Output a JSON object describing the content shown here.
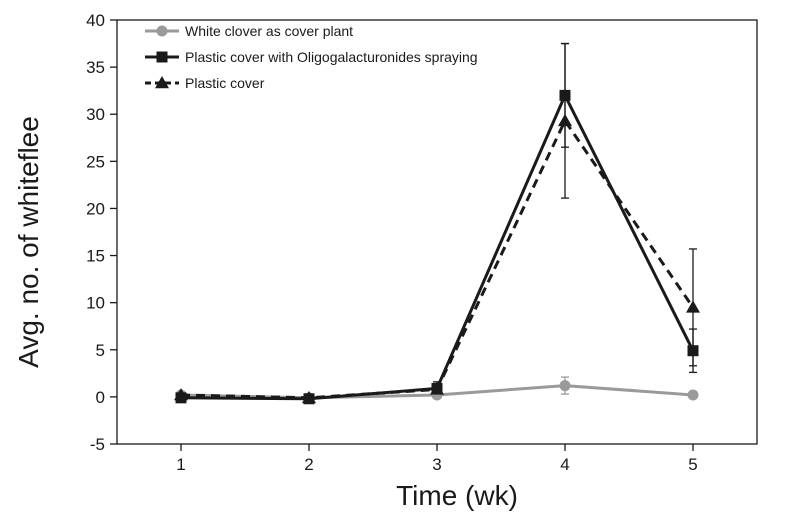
{
  "chart_data": {
    "type": "line",
    "xlabel": "Time (wk)",
    "ylabel": "Avg. no. of whiteflee",
    "x": [
      1,
      2,
      3,
      4,
      5
    ],
    "xlim": [
      0.5,
      5.5
    ],
    "ylim": [
      -5,
      40
    ],
    "yticks": [
      -5,
      0,
      5,
      10,
      15,
      20,
      25,
      30,
      35,
      40
    ],
    "grid": false,
    "legend_position": "top-left",
    "series": [
      {
        "name": "White clover as cover plant",
        "values": [
          0.2,
          -0.1,
          0.2,
          1.2,
          0.2
        ],
        "error": [
          0.3,
          0.1,
          0.2,
          0.9,
          0.3
        ],
        "color": "#9a9a9a",
        "marker": "circle",
        "dash": "solid"
      },
      {
        "name": "Plastic cover with Oligogalacturonides spraying",
        "values": [
          -0.1,
          -0.2,
          0.9,
          32.0,
          4.9
        ],
        "error": [
          0.2,
          0.1,
          0.7,
          5.5,
          2.3
        ],
        "color": "#1a1a1a",
        "marker": "square",
        "dash": "solid"
      },
      {
        "name": "Plastic cover",
        "values": [
          0.2,
          -0.1,
          0.8,
          29.3,
          9.5
        ],
        "error": [
          0.3,
          0.1,
          0.6,
          8.2,
          6.2
        ],
        "color": "#1a1a1a",
        "marker": "triangle",
        "dash": "dashed"
      }
    ]
  }
}
